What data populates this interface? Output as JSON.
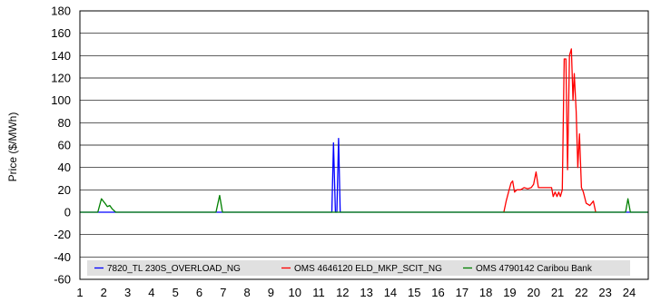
{
  "chart_data": {
    "type": "line",
    "title": "",
    "xlabel": "",
    "ylabel": "Price ($/MWh)",
    "ylim": [
      -60,
      180
    ],
    "yticks": [
      180,
      160,
      140,
      120,
      100,
      80,
      60,
      40,
      20,
      0,
      -20,
      -40,
      -60
    ],
    "xlim": [
      1,
      24.8
    ],
    "xticks": [
      1,
      2,
      3,
      4,
      5,
      6,
      7,
      8,
      9,
      10,
      11,
      12,
      13,
      14,
      15,
      16,
      17,
      18,
      19,
      20,
      21,
      22,
      23,
      24
    ],
    "grid": "horizontal",
    "legend_position": "bottom",
    "series": [
      {
        "name": "7820_TL 230S_OVERLOAD_NG",
        "color": "#0000ff",
        "points": [
          [
            1,
            0
          ],
          [
            11.55,
            0
          ],
          [
            11.62,
            62
          ],
          [
            11.7,
            0
          ],
          [
            11.76,
            0
          ],
          [
            11.83,
            66
          ],
          [
            11.9,
            0
          ],
          [
            24.8,
            0
          ]
        ]
      },
      {
        "name": "OMS 4646120 ELD_MKP_SCIT_NG",
        "color": "#ff0000",
        "points": [
          [
            18.75,
            0
          ],
          [
            18.85,
            10
          ],
          [
            18.95,
            18
          ],
          [
            19.05,
            26
          ],
          [
            19.12,
            28
          ],
          [
            19.2,
            18
          ],
          [
            19.3,
            20
          ],
          [
            19.45,
            20
          ],
          [
            19.6,
            22
          ],
          [
            19.75,
            21
          ],
          [
            19.9,
            22
          ],
          [
            20.0,
            25
          ],
          [
            20.1,
            36
          ],
          [
            20.2,
            22
          ],
          [
            20.4,
            22
          ],
          [
            20.6,
            22
          ],
          [
            20.75,
            22
          ],
          [
            20.82,
            14
          ],
          [
            20.9,
            18
          ],
          [
            20.98,
            14
          ],
          [
            21.05,
            18
          ],
          [
            21.12,
            14
          ],
          [
            21.2,
            20
          ],
          [
            21.28,
            137
          ],
          [
            21.35,
            137
          ],
          [
            21.42,
            38
          ],
          [
            21.5,
            140
          ],
          [
            21.58,
            146
          ],
          [
            21.65,
            100
          ],
          [
            21.7,
            124
          ],
          [
            21.78,
            90
          ],
          [
            21.85,
            40
          ],
          [
            21.92,
            70
          ],
          [
            22.0,
            22
          ],
          [
            22.08,
            18
          ],
          [
            22.2,
            8
          ],
          [
            22.35,
            6
          ],
          [
            22.5,
            10
          ],
          [
            22.6,
            0
          ]
        ]
      },
      {
        "name": "OMS 4790142 Caribou Bank",
        "color": "#008000",
        "points": [
          [
            1,
            0
          ],
          [
            1.75,
            0
          ],
          [
            1.9,
            12
          ],
          [
            2.05,
            8
          ],
          [
            2.15,
            5
          ],
          [
            2.25,
            6
          ],
          [
            2.35,
            3
          ],
          [
            2.5,
            0
          ],
          [
            6.7,
            0
          ],
          [
            6.85,
            15
          ],
          [
            6.97,
            0
          ],
          [
            23.85,
            0
          ],
          [
            23.95,
            12
          ],
          [
            24.05,
            0
          ],
          [
            24.8,
            0
          ]
        ]
      }
    ]
  }
}
